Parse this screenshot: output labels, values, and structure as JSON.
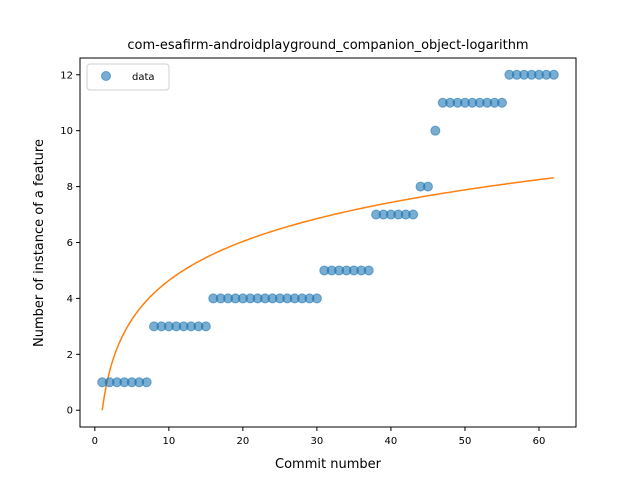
{
  "chart_data": {
    "type": "scatter",
    "title": "com-esafirm-androidplayground_companion_object-logarithm",
    "xlabel": "Commit number",
    "ylabel": "Number of instance of a feature",
    "xlim": [
      -2,
      65
    ],
    "ylim": [
      -0.6,
      12.6
    ],
    "xticks": [
      0,
      10,
      20,
      30,
      40,
      50,
      60
    ],
    "yticks": [
      0,
      2,
      4,
      6,
      8,
      10,
      12
    ],
    "legend": {
      "position": "top-left",
      "entries": [
        "data"
      ]
    },
    "grid": false,
    "colors": {
      "data": "#1f77b4",
      "fit": "#ff7f0e"
    },
    "series": [
      {
        "name": "data",
        "kind": "scatter",
        "x": [
          1,
          2,
          3,
          4,
          5,
          6,
          7,
          8,
          9,
          10,
          11,
          12,
          13,
          14,
          15,
          16,
          17,
          18,
          19,
          20,
          21,
          22,
          23,
          24,
          25,
          26,
          27,
          28,
          29,
          30,
          31,
          32,
          33,
          34,
          35,
          36,
          37,
          38,
          39,
          40,
          41,
          42,
          43,
          44,
          45,
          46,
          47,
          48,
          49,
          50,
          51,
          52,
          53,
          54,
          55,
          56,
          57,
          58,
          59,
          60,
          61,
          62
        ],
        "y": [
          1,
          1,
          1,
          1,
          1,
          1,
          1,
          3,
          3,
          3,
          3,
          3,
          3,
          3,
          3,
          4,
          4,
          4,
          4,
          4,
          4,
          4,
          4,
          4,
          4,
          4,
          4,
          4,
          4,
          4,
          5,
          5,
          5,
          5,
          5,
          5,
          5,
          7,
          7,
          7,
          7,
          7,
          7,
          8,
          8,
          10,
          11,
          11,
          11,
          11,
          11,
          11,
          11,
          11,
          11,
          12,
          12,
          12,
          12,
          12,
          12,
          12
        ]
      },
      {
        "kind": "line",
        "function": "a*ln(x)",
        "a": 2.015,
        "x_range": [
          1,
          62
        ]
      }
    ]
  }
}
